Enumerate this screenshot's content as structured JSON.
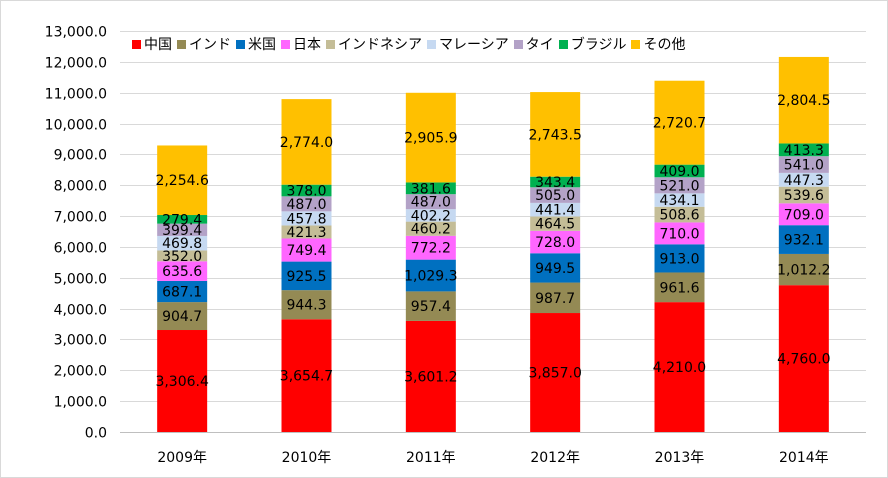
{
  "chart_data": {
    "type": "bar",
    "stacked": true,
    "categories": [
      "2009年",
      "2010年",
      "2011年",
      "2012年",
      "2013年",
      "2014年"
    ],
    "series": [
      {
        "name": "中国",
        "color": "#ff0000",
        "values": [
          3306.4,
          3654.7,
          3601.2,
          3857.0,
          4210.0,
          4760.0
        ]
      },
      {
        "name": "インド",
        "color": "#948a54",
        "values": [
          904.7,
          944.3,
          957.4,
          987.7,
          961.6,
          1012.2
        ]
      },
      {
        "name": "米国",
        "color": "#0070c0",
        "values": [
          687.1,
          925.5,
          1029.3,
          949.5,
          913.0,
          932.1
        ]
      },
      {
        "name": "日本",
        "color": "#ff66ff",
        "values": [
          635.6,
          749.4,
          772.2,
          728.0,
          710.0,
          709.0
        ]
      },
      {
        "name": "インドネシア",
        "color": "#c4bd97",
        "values": [
          352.0,
          421.3,
          460.2,
          464.5,
          508.6,
          539.6
        ]
      },
      {
        "name": "マレーシア",
        "color": "#c6d9f1",
        "values": [
          469.8,
          457.8,
          402.2,
          441.4,
          434.1,
          447.3
        ]
      },
      {
        "name": "タイ",
        "color": "#b3a2c7",
        "values": [
          399.4,
          487.0,
          487.0,
          505.0,
          521.0,
          541.0
        ]
      },
      {
        "name": "ブラジル",
        "color": "#00b050",
        "values": [
          279.4,
          378.0,
          381.6,
          343.4,
          409.0,
          413.3
        ]
      },
      {
        "name": "その他",
        "color": "#ffc000",
        "values": [
          2254.6,
          2774.0,
          2905.9,
          2743.5,
          2720.7,
          2804.5
        ]
      }
    ],
    "data_labels": [
      [
        "3,306.4",
        "3,654.7",
        "3,601.2",
        "3,857.0",
        "4,210.0",
        "4,760.0"
      ],
      [
        "904.7",
        "944.3",
        "957.4",
        "987.7",
        "961.6",
        "1,012.2"
      ],
      [
        "687.1",
        "925.5",
        "1,029.3",
        "949.5",
        "913.0",
        "932.1"
      ],
      [
        "635.6",
        "749.4",
        "772.2",
        "728.0",
        "710.0",
        "709.0"
      ],
      [
        "352.0",
        "421.3",
        "460.2",
        "464.5",
        "508.6",
        "539.6"
      ],
      [
        "469.8",
        "457.8",
        "402.2",
        "441.4",
        "434.1",
        "447.3"
      ],
      [
        "399.4",
        "487.0",
        "487.0",
        "505.0",
        "521.0",
        "541.0"
      ],
      [
        "279.4",
        "378.0",
        "381.6",
        "343.4",
        "409.0",
        "413.3"
      ],
      [
        "2,254.6",
        "2,774.0",
        "2,905.9",
        "2,743.5",
        "2,720.7",
        "2,804.5"
      ]
    ],
    "ylim": [
      0,
      13000
    ],
    "yticks": [
      0,
      1000,
      2000,
      3000,
      4000,
      5000,
      6000,
      7000,
      8000,
      9000,
      10000,
      11000,
      12000,
      13000
    ],
    "ytick_labels": [
      "0.0",
      "1,000.0",
      "2,000.0",
      "3,000.0",
      "4,000.0",
      "5,000.0",
      "6,000.0",
      "7,000.0",
      "8,000.0",
      "9,000.0",
      "10,000.0",
      "11,000.0",
      "12,000.0",
      "13,000.0"
    ],
    "grid": true,
    "legend_position": "top",
    "gridline_color": "#d9d9d9",
    "axis_color": "#bfbfbf",
    "text_color": "#000000"
  }
}
